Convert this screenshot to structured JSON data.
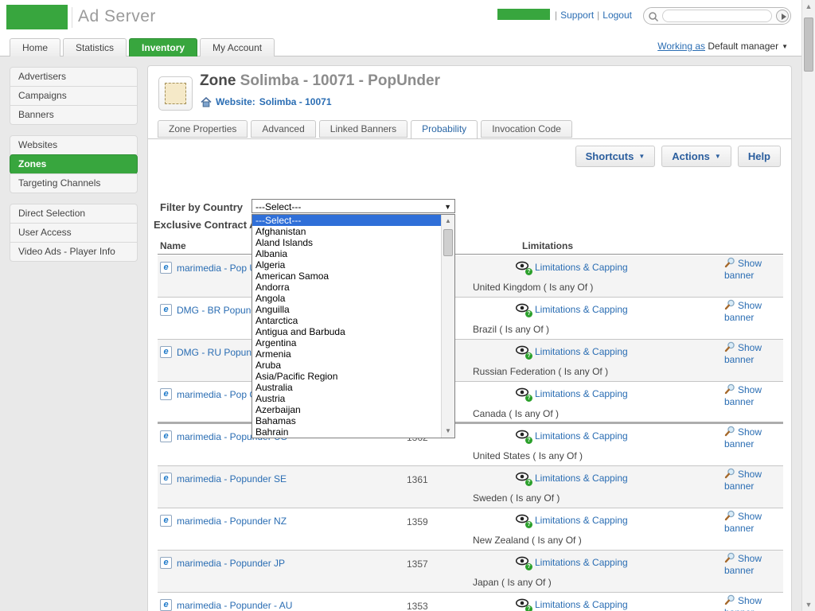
{
  "colors": {
    "brand_green": "#38a63e",
    "link_blue": "#2a6db3",
    "active_tab_text": "#2a66a5",
    "dropdown_highlight": "#2f6fd8",
    "row_shade": "#f4f4f4"
  },
  "header": {
    "app_title": "Ad Server",
    "support_label": "Support",
    "logout_label": "Logout",
    "search_value": "",
    "working_as_label": "Working as",
    "working_as_value": "Default manager"
  },
  "nav": {
    "tabs": [
      {
        "label": "Home",
        "active": false
      },
      {
        "label": "Statistics",
        "active": false
      },
      {
        "label": "Inventory",
        "active": true
      },
      {
        "label": "My Account",
        "active": false
      }
    ]
  },
  "sidebar": {
    "active": "Zones",
    "groups": [
      [
        "Advertisers",
        "Campaigns",
        "Banners"
      ],
      [
        "Websites",
        "Zones",
        "Targeting Channels"
      ],
      [
        "Direct Selection",
        "User Access",
        "Video Ads - Player Info"
      ]
    ]
  },
  "zone_header": {
    "title_prefix": "Zone",
    "title_rest": "Solimba - 10071 - PopUnder",
    "website_label": "Website:",
    "website_value": "Solimba - 10071"
  },
  "zone_tabs": {
    "active": "Probability",
    "items": [
      "Zone Properties",
      "Advanced",
      "Linked Banners",
      "Probability",
      "Invocation Code"
    ]
  },
  "toolbar": {
    "shortcuts_label": "Shortcuts",
    "actions_label": "Actions",
    "help_label": "Help"
  },
  "filter": {
    "label": "Filter by Country",
    "selected": "---Select---"
  },
  "section_title": "Exclusive Contract Ads",
  "table": {
    "headers": {
      "name": "Name",
      "limitations": "Limitations"
    },
    "limitations_link": "Limitations & Capping",
    "show_banner_link": "Show banner",
    "rows": [
      {
        "name": "marimedia - Pop UK",
        "id": "",
        "country": "United Kingdom ( Is any Of )",
        "shade": true,
        "section_end": false
      },
      {
        "name": "DMG - BR Popunder",
        "id": "",
        "country": "Brazil ( Is any Of )",
        "shade": false,
        "section_end": false
      },
      {
        "name": "DMG - RU Popunder",
        "id": "",
        "country": "Russian Federation ( Is any Of )",
        "shade": true,
        "section_end": false
      },
      {
        "name": "marimedia - Pop CA",
        "id": "",
        "country": "Canada ( Is any Of )",
        "shade": false,
        "section_end": true
      },
      {
        "name": "marimedia - Popunder US",
        "id": "1362",
        "country": "United States ( Is any Of )",
        "shade": false,
        "section_end": false
      },
      {
        "name": "marimedia - Popunder SE",
        "id": "1361",
        "country": "Sweden ( Is any Of )",
        "shade": true,
        "section_end": false
      },
      {
        "name": "marimedia - Popunder NZ",
        "id": "1359",
        "country": "New Zealand ( Is any Of )",
        "shade": false,
        "section_end": false
      },
      {
        "name": "marimedia - Popunder JP",
        "id": "1357",
        "country": "Japan ( Is any Of )",
        "shade": true,
        "section_end": false
      },
      {
        "name": "marimedia - Popunder - AU",
        "id": "1353",
        "country": "",
        "shade": false,
        "section_end": false
      }
    ]
  },
  "dropdown": {
    "selected_index": 0,
    "options": [
      "---Select---",
      "Afghanistan",
      "Aland Islands",
      "Albania",
      "Algeria",
      "American Samoa",
      "Andorra",
      "Angola",
      "Anguilla",
      "Antarctica",
      "Antigua and Barbuda",
      "Argentina",
      "Armenia",
      "Aruba",
      "Asia/Pacific Region",
      "Australia",
      "Austria",
      "Azerbaijan",
      "Bahamas",
      "Bahrain"
    ]
  },
  "icons": {
    "select_caret": "▼",
    "button_caret": "▼",
    "working_caret": "▼",
    "scroll_up": "▲",
    "scroll_down": "▼",
    "pipe": "|"
  }
}
